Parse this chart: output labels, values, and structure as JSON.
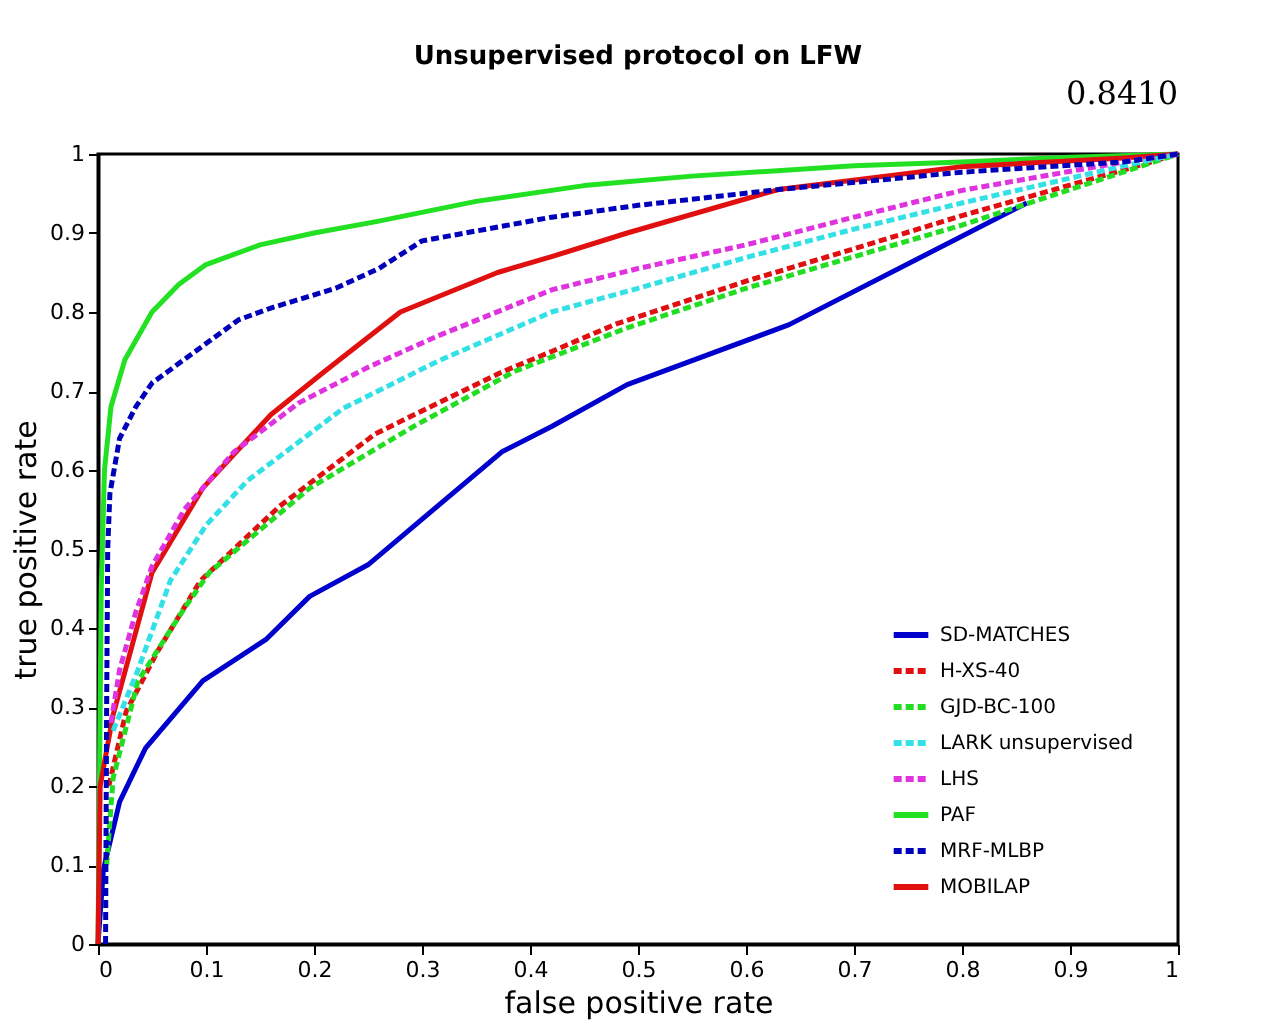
{
  "chart_data": {
    "type": "line",
    "title": "Unsupervised protocol on LFW",
    "xlabel": "false positive rate",
    "ylabel": "true positive rate",
    "xlim": [
      0,
      1
    ],
    "ylim": [
      0,
      1
    ],
    "xticks": [
      0,
      0.1,
      0.2,
      0.3,
      0.4,
      0.5,
      0.6,
      0.7,
      0.8,
      0.9,
      1
    ],
    "yticks": [
      0,
      0.1,
      0.2,
      0.3,
      0.4,
      0.5,
      0.6,
      0.7,
      0.8,
      0.9,
      1
    ],
    "grid": false,
    "legend": "bottom right",
    "marker": "none",
    "annotations": [
      "0.8410"
    ],
    "series": [
      {
        "name": "SD-MATCHES",
        "color": "#0000cc",
        "line_style": "solid",
        "x": [
          0,
          0.005,
          0.02,
          0.044,
          0.097,
          0.156,
          0.196,
          0.25,
          0.374,
          0.42,
          0.49,
          0.64,
          0.86
        ],
        "values": [
          0,
          0.094,
          0.18,
          0.248,
          0.333,
          0.386,
          0.44,
          0.48,
          0.623,
          0.655,
          0.708,
          0.784,
          0.938
        ]
      },
      {
        "name": "H-XS-40",
        "color": "#e01010",
        "line_style": "dashed",
        "x": [
          0.01,
          0.026,
          0.055,
          0.095,
          0.168,
          0.257,
          0.374,
          0.42,
          0.48,
          0.6,
          0.7,
          0.8,
          0.95,
          1
        ],
        "values": [
          0.2,
          0.294,
          0.37,
          0.46,
          0.554,
          0.646,
          0.724,
          0.75,
          0.785,
          0.839,
          0.88,
          0.922,
          0.98,
          1
        ]
      },
      {
        "name": "GJD-BC-100",
        "color": "#22dd22",
        "line_style": "dashed",
        "x": [
          0.008,
          0.014,
          0.037,
          0.08,
          0.103,
          0.196,
          0.292,
          0.386,
          0.49,
          0.6,
          0.7,
          0.8,
          0.9,
          1
        ],
        "values": [
          0.1,
          0.21,
          0.333,
          0.425,
          0.47,
          0.577,
          0.655,
          0.725,
          0.78,
          0.83,
          0.87,
          0.91,
          0.955,
          1
        ]
      },
      {
        "name": "LARK unsupervised",
        "color": "#33e0e6",
        "line_style": "dashed",
        "x": [
          0.014,
          0.037,
          0.067,
          0.1,
          0.138,
          0.227,
          0.315,
          0.42,
          0.5,
          0.6,
          0.7,
          0.8,
          0.95,
          1
        ],
        "values": [
          0.27,
          0.347,
          0.46,
          0.53,
          0.586,
          0.678,
          0.738,
          0.8,
          0.83,
          0.869,
          0.905,
          0.938,
          0.985,
          1
        ]
      },
      {
        "name": "LHS",
        "color": "#e033e0",
        "line_style": "dashed",
        "x": [
          0.012,
          0.02,
          0.035,
          0.05,
          0.08,
          0.126,
          0.186,
          0.25,
          0.315,
          0.42,
          0.5,
          0.6,
          0.7,
          0.8,
          0.95,
          1
        ],
        "values": [
          0.28,
          0.347,
          0.42,
          0.478,
          0.55,
          0.623,
          0.685,
          0.73,
          0.77,
          0.828,
          0.855,
          0.885,
          0.92,
          0.954,
          0.99,
          1
        ]
      },
      {
        "name": "PAF",
        "color": "#22e022",
        "line_style": "solid",
        "x": [
          0,
          0.003,
          0.006,
          0.012,
          0.025,
          0.05,
          0.075,
          0.1,
          0.15,
          0.2,
          0.26,
          0.35,
          0.45,
          0.55,
          0.7,
          0.8,
          0.9,
          1
        ],
        "values": [
          0,
          0.45,
          0.6,
          0.68,
          0.74,
          0.8,
          0.835,
          0.86,
          0.885,
          0.9,
          0.915,
          0.94,
          0.96,
          0.972,
          0.985,
          0.99,
          0.996,
          1
        ]
      },
      {
        "name": "MRF-MLBP",
        "color": "#0000bb",
        "line_style": "dashed",
        "x": [
          0.007,
          0.008,
          0.009,
          0.011,
          0.02,
          0.035,
          0.05,
          0.09,
          0.13,
          0.16,
          0.22,
          0.26,
          0.3,
          0.42,
          0.5,
          0.63,
          0.8,
          0.95,
          1
        ],
        "values": [
          0,
          0.3,
          0.5,
          0.57,
          0.64,
          0.68,
          0.71,
          0.75,
          0.79,
          0.805,
          0.83,
          0.855,
          0.89,
          0.92,
          0.935,
          0.955,
          0.977,
          0.99,
          1
        ]
      },
      {
        "name": "MOBILAP",
        "color": "#e01010",
        "line_style": "solid",
        "x": [
          0,
          0.002,
          0.014,
          0.032,
          0.05,
          0.097,
          0.16,
          0.21,
          0.28,
          0.37,
          0.42,
          0.49,
          0.63,
          0.8,
          0.95,
          1
        ],
        "values": [
          0,
          0.2,
          0.29,
          0.38,
          0.47,
          0.577,
          0.67,
          0.725,
          0.8,
          0.85,
          0.87,
          0.9,
          0.955,
          0.984,
          0.995,
          1
        ]
      }
    ]
  }
}
